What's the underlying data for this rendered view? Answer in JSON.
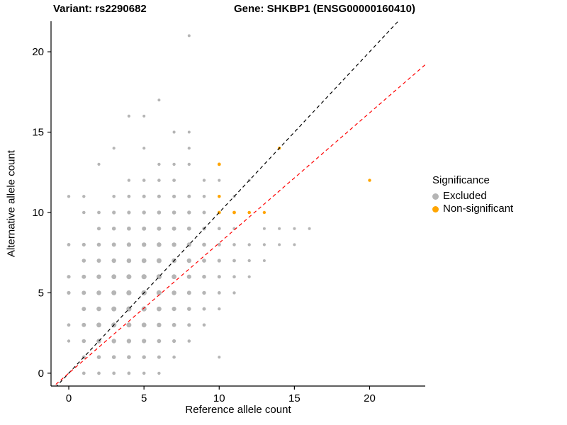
{
  "header": {
    "title_left": "Variant: rs2290682",
    "title_right": "Gene: SHKBP1 (ENSG00000160410)"
  },
  "chart_data": {
    "type": "scatter",
    "xlabel": "Reference allele count",
    "ylabel": "Alternative allele count",
    "x_domain": [
      -1.18,
      23.7
    ],
    "y_domain": [
      -0.8,
      21.9
    ],
    "x_ticks": [
      0,
      5,
      10,
      15,
      20
    ],
    "y_ticks": [
      0,
      5,
      10,
      15,
      20
    ],
    "grid": false,
    "legend": {
      "title": "Significance",
      "position": "right",
      "items": [
        {
          "label": "Excluded",
          "color": "#b5b5b5"
        },
        {
          "label": "Non-significant",
          "color": "#FFA500"
        }
      ]
    },
    "lines": [
      {
        "name": "identity-line",
        "slope": 1.0,
        "intercept": 0,
        "color": "#000000",
        "dash": "5,4"
      },
      {
        "name": "expected-ratio-line",
        "slope": 0.81,
        "intercept": 0,
        "color": "#FF0000",
        "dash": "5,4"
      }
    ],
    "series": [
      {
        "name": "Excluded",
        "color": "#b5b5b5",
        "points": [
          [
            0,
            2,
            2.2
          ],
          [
            0,
            3,
            2.4
          ],
          [
            0,
            5,
            2.6
          ],
          [
            0,
            6,
            2.6
          ],
          [
            0,
            8,
            2.4
          ],
          [
            0,
            11,
            2.2
          ],
          [
            1,
            0,
            2.4
          ],
          [
            1,
            1,
            2.6
          ],
          [
            1,
            2,
            2.8
          ],
          [
            1,
            3,
            3.0
          ],
          [
            1,
            4,
            3.0
          ],
          [
            1,
            5,
            3.0
          ],
          [
            1,
            6,
            3.0
          ],
          [
            1,
            7,
            2.8
          ],
          [
            1,
            8,
            2.6
          ],
          [
            1,
            10,
            2.3
          ],
          [
            1,
            11,
            2.2
          ],
          [
            2,
            0,
            2.4
          ],
          [
            2,
            1,
            2.8
          ],
          [
            2,
            2,
            3.2
          ],
          [
            2,
            3,
            3.4
          ],
          [
            2,
            4,
            3.3
          ],
          [
            2,
            5,
            3.3
          ],
          [
            2,
            6,
            3.2
          ],
          [
            2,
            7,
            3.0
          ],
          [
            2,
            8,
            2.8
          ],
          [
            2,
            9,
            2.6
          ],
          [
            2,
            10,
            2.4
          ],
          [
            2,
            13,
            2.1
          ],
          [
            3,
            0,
            2.4
          ],
          [
            3,
            1,
            2.8
          ],
          [
            3,
            2,
            3.2
          ],
          [
            3,
            3,
            3.6
          ],
          [
            3,
            4,
            3.5
          ],
          [
            3,
            5,
            3.5
          ],
          [
            3,
            6,
            3.4
          ],
          [
            3,
            7,
            3.2
          ],
          [
            3,
            8,
            3.0
          ],
          [
            3,
            9,
            2.8
          ],
          [
            3,
            10,
            2.6
          ],
          [
            3,
            11,
            2.3
          ],
          [
            3,
            14,
            2.1
          ],
          [
            4,
            0,
            2.4
          ],
          [
            4,
            1,
            2.8
          ],
          [
            4,
            2,
            3.2
          ],
          [
            4,
            3,
            3.5
          ],
          [
            4,
            4,
            3.6
          ],
          [
            4,
            5,
            3.6
          ],
          [
            4,
            6,
            3.5
          ],
          [
            4,
            7,
            3.3
          ],
          [
            4,
            8,
            3.1
          ],
          [
            4,
            9,
            2.9
          ],
          [
            4,
            10,
            2.6
          ],
          [
            4,
            11,
            2.4
          ],
          [
            4,
            12,
            2.2
          ],
          [
            4,
            16,
            2.1
          ],
          [
            5,
            0,
            2.3
          ],
          [
            5,
            1,
            2.7
          ],
          [
            5,
            2,
            3.1
          ],
          [
            5,
            3,
            3.4
          ],
          [
            5,
            4,
            3.6
          ],
          [
            5,
            5,
            3.7
          ],
          [
            5,
            6,
            3.6
          ],
          [
            5,
            7,
            3.4
          ],
          [
            5,
            8,
            3.2
          ],
          [
            5,
            9,
            3.0
          ],
          [
            5,
            10,
            2.7
          ],
          [
            5,
            11,
            2.5
          ],
          [
            5,
            12,
            2.3
          ],
          [
            5,
            14,
            2.1
          ],
          [
            5,
            16,
            2.0
          ],
          [
            6,
            0,
            2.2
          ],
          [
            6,
            1,
            2.5
          ],
          [
            6,
            2,
            2.9
          ],
          [
            6,
            3,
            3.2
          ],
          [
            6,
            4,
            3.4
          ],
          [
            6,
            5,
            3.6
          ],
          [
            6,
            6,
            3.6
          ],
          [
            6,
            7,
            3.5
          ],
          [
            6,
            8,
            3.3
          ],
          [
            6,
            9,
            3.0
          ],
          [
            6,
            10,
            2.8
          ],
          [
            6,
            11,
            2.5
          ],
          [
            6,
            12,
            2.3
          ],
          [
            6,
            13,
            2.2
          ],
          [
            6,
            17,
            2.0
          ],
          [
            7,
            1,
            2.3
          ],
          [
            7,
            2,
            2.6
          ],
          [
            7,
            3,
            2.9
          ],
          [
            7,
            4,
            3.1
          ],
          [
            7,
            5,
            3.3
          ],
          [
            7,
            6,
            3.4
          ],
          [
            7,
            7,
            3.4
          ],
          [
            7,
            8,
            3.2
          ],
          [
            7,
            9,
            3.0
          ],
          [
            7,
            10,
            2.8
          ],
          [
            7,
            11,
            2.6
          ],
          [
            7,
            12,
            2.4
          ],
          [
            7,
            13,
            2.2
          ],
          [
            7,
            15,
            2.1
          ],
          [
            8,
            2,
            2.3
          ],
          [
            8,
            3,
            2.6
          ],
          [
            8,
            4,
            2.8
          ],
          [
            8,
            5,
            3.0
          ],
          [
            8,
            6,
            3.1
          ],
          [
            8,
            7,
            3.2
          ],
          [
            8,
            8,
            3.1
          ],
          [
            8,
            9,
            2.9
          ],
          [
            8,
            10,
            2.7
          ],
          [
            8,
            11,
            2.5
          ],
          [
            8,
            13,
            2.2
          ],
          [
            8,
            14,
            2.1
          ],
          [
            8,
            15,
            2.0
          ],
          [
            8,
            21,
            2.0
          ],
          [
            9,
            3,
            2.3
          ],
          [
            9,
            4,
            2.5
          ],
          [
            9,
            5,
            2.7
          ],
          [
            9,
            6,
            2.8
          ],
          [
            9,
            7,
            2.9
          ],
          [
            9,
            8,
            2.8
          ],
          [
            9,
            9,
            2.7
          ],
          [
            9,
            10,
            2.5
          ],
          [
            9,
            11,
            2.3
          ],
          [
            9,
            12,
            2.2
          ],
          [
            10,
            1,
            2.0
          ],
          [
            10,
            4,
            2.2
          ],
          [
            10,
            5,
            2.4
          ],
          [
            10,
            6,
            2.5
          ],
          [
            10,
            7,
            2.6
          ],
          [
            10,
            8,
            2.5
          ],
          [
            10,
            9,
            2.4
          ],
          [
            10,
            12,
            2.1
          ],
          [
            11,
            5,
            2.2
          ],
          [
            11,
            6,
            2.3
          ],
          [
            11,
            7,
            2.4
          ],
          [
            11,
            8,
            2.3
          ],
          [
            11,
            9,
            2.2
          ],
          [
            11,
            11,
            2.0
          ],
          [
            12,
            6,
            2.1
          ],
          [
            12,
            7,
            2.2
          ],
          [
            12,
            8,
            2.2
          ],
          [
            12,
            12,
            2.0
          ],
          [
            13,
            7,
            2.0
          ],
          [
            13,
            8,
            2.1
          ],
          [
            13,
            9,
            2.0
          ],
          [
            14,
            8,
            2.0
          ],
          [
            14,
            9,
            2.0
          ],
          [
            15,
            8,
            2.0
          ],
          [
            15,
            9,
            2.0
          ],
          [
            16,
            9,
            2.0
          ]
        ]
      },
      {
        "name": "Non-significant",
        "color": "#FFA500",
        "points": [
          [
            10,
            13,
            2.4
          ],
          [
            10,
            11,
            2.3
          ],
          [
            10,
            10,
            2.4
          ],
          [
            11,
            10,
            2.4
          ],
          [
            12,
            10,
            2.3
          ],
          [
            13,
            10,
            2.2
          ],
          [
            14,
            14,
            2.2
          ],
          [
            20,
            12,
            2.2
          ]
        ]
      }
    ]
  }
}
